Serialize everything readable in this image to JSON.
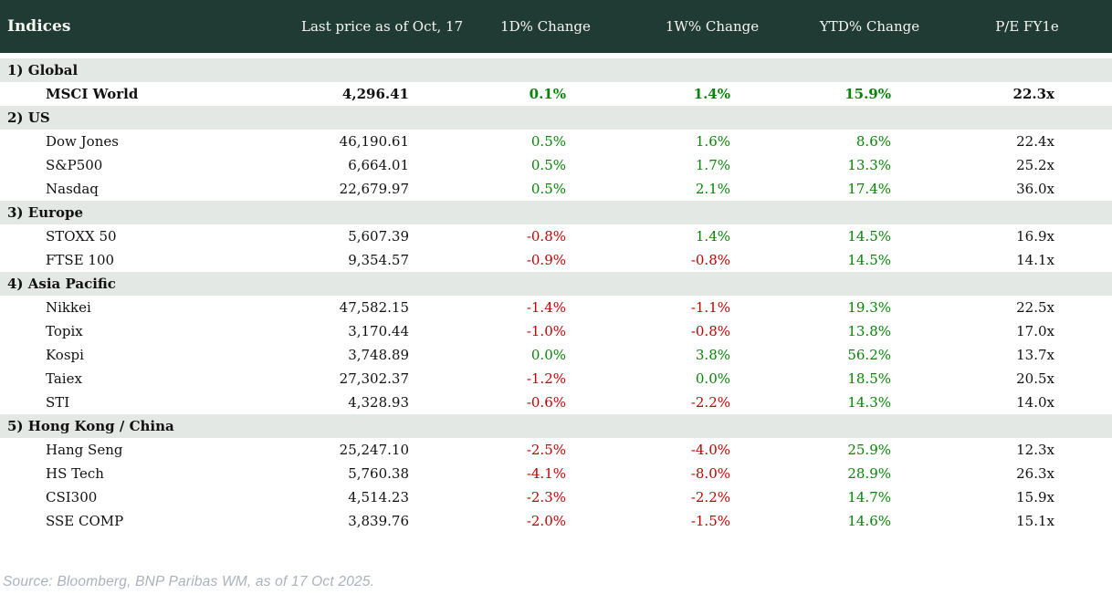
{
  "header": {
    "title": "Indices",
    "columns": [
      {
        "label": "Last price as of Oct, 17"
      },
      {
        "label": "1D% Change"
      },
      {
        "label": "1W% Change"
      },
      {
        "label": "YTD% Change"
      },
      {
        "label": "P/E FY1e"
      }
    ]
  },
  "colors": {
    "header_bg": "#1f3b33",
    "section_bg": "#e4e8e5",
    "positive": "#078307",
    "negative": "#c00000"
  },
  "sections": [
    {
      "label": "1) Global",
      "rows": [
        {
          "name": "MSCI World",
          "price": "4,296.41",
          "d1": "0.1%",
          "d1_dir": "pos",
          "w1": "1.4%",
          "w1_dir": "pos",
          "ytd": "15.9%",
          "ytd_dir": "pos",
          "pe": "22.3x",
          "bold": true
        }
      ]
    },
    {
      "label": "2) US",
      "rows": [
        {
          "name": "Dow Jones",
          "price": "46,190.61",
          "d1": "0.5%",
          "d1_dir": "pos",
          "w1": "1.6%",
          "w1_dir": "pos",
          "ytd": "8.6%",
          "ytd_dir": "pos",
          "pe": "22.4x",
          "bold": false
        },
        {
          "name": "S&P500",
          "price": "6,664.01",
          "d1": "0.5%",
          "d1_dir": "pos",
          "w1": "1.7%",
          "w1_dir": "pos",
          "ytd": "13.3%",
          "ytd_dir": "pos",
          "pe": "25.2x",
          "bold": false
        },
        {
          "name": "Nasdaq",
          "price": "22,679.97",
          "d1": "0.5%",
          "d1_dir": "pos",
          "w1": "2.1%",
          "w1_dir": "pos",
          "ytd": "17.4%",
          "ytd_dir": "pos",
          "pe": "36.0x",
          "bold": false
        }
      ]
    },
    {
      "label": "3) Europe",
      "rows": [
        {
          "name": "STOXX 50",
          "price": "5,607.39",
          "d1": "-0.8%",
          "d1_dir": "neg",
          "w1": "1.4%",
          "w1_dir": "pos",
          "ytd": "14.5%",
          "ytd_dir": "pos",
          "pe": "16.9x",
          "bold": false
        },
        {
          "name": "FTSE 100",
          "price": "9,354.57",
          "d1": "-0.9%",
          "d1_dir": "neg",
          "w1": "-0.8%",
          "w1_dir": "neg",
          "ytd": "14.5%",
          "ytd_dir": "pos",
          "pe": "14.1x",
          "bold": false
        }
      ]
    },
    {
      "label": "4) Asia Pacific",
      "rows": [
        {
          "name": "Nikkei",
          "price": "47,582.15",
          "d1": "-1.4%",
          "d1_dir": "neg",
          "w1": "-1.1%",
          "w1_dir": "neg",
          "ytd": "19.3%",
          "ytd_dir": "pos",
          "pe": "22.5x",
          "bold": false
        },
        {
          "name": "Topix",
          "price": "3,170.44",
          "d1": "-1.0%",
          "d1_dir": "neg",
          "w1": "-0.8%",
          "w1_dir": "neg",
          "ytd": "13.8%",
          "ytd_dir": "pos",
          "pe": "17.0x",
          "bold": false
        },
        {
          "name": "Kospi",
          "price": "3,748.89",
          "d1": "0.0%",
          "d1_dir": "pos",
          "w1": "3.8%",
          "w1_dir": "pos",
          "ytd": "56.2%",
          "ytd_dir": "pos",
          "pe": "13.7x",
          "bold": false
        },
        {
          "name": "Taiex",
          "price": "27,302.37",
          "d1": "-1.2%",
          "d1_dir": "neg",
          "w1": "0.0%",
          "w1_dir": "pos",
          "ytd": "18.5%",
          "ytd_dir": "pos",
          "pe": "20.5x",
          "bold": false
        },
        {
          "name": "STI",
          "price": "4,328.93",
          "d1": "-0.6%",
          "d1_dir": "neg",
          "w1": "-2.2%",
          "w1_dir": "neg",
          "ytd": "14.3%",
          "ytd_dir": "pos",
          "pe": "14.0x",
          "bold": false
        }
      ]
    },
    {
      "label": "5) Hong Kong / China",
      "rows": [
        {
          "name": "Hang Seng",
          "price": "25,247.10",
          "d1": "-2.5%",
          "d1_dir": "neg",
          "w1": "-4.0%",
          "w1_dir": "neg",
          "ytd": "25.9%",
          "ytd_dir": "pos",
          "pe": "12.3x",
          "bold": false
        },
        {
          "name": "HS Tech",
          "price": "5,760.38",
          "d1": "-4.1%",
          "d1_dir": "neg",
          "w1": "-8.0%",
          "w1_dir": "neg",
          "ytd": "28.9%",
          "ytd_dir": "pos",
          "pe": "26.3x",
          "bold": false
        },
        {
          "name": "CSI300",
          "price": "4,514.23",
          "d1": "-2.3%",
          "d1_dir": "neg",
          "w1": "-2.2%",
          "w1_dir": "neg",
          "ytd": "14.7%",
          "ytd_dir": "pos",
          "pe": "15.9x",
          "bold": false
        },
        {
          "name": "SSE COMP",
          "price": "3,839.76",
          "d1": "-2.0%",
          "d1_dir": "neg",
          "w1": "-1.5%",
          "w1_dir": "neg",
          "ytd": "14.6%",
          "ytd_dir": "pos",
          "pe": "15.1x",
          "bold": false
        }
      ]
    }
  ],
  "footer": {
    "source": "Source: Bloomberg, BNP Paribas WM, as of 17 Oct 2025."
  }
}
